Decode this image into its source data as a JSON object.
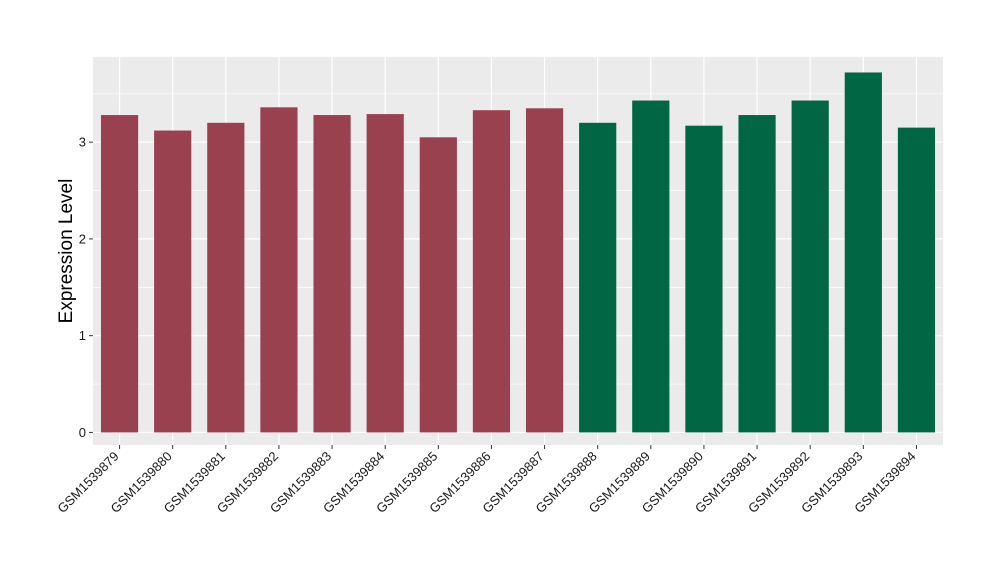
{
  "chart_data": {
    "type": "bar",
    "title": "",
    "xlabel": "",
    "ylabel": "Expression Level",
    "ylim": [
      -0.13,
      3.88
    ],
    "yticks": [
      0,
      1,
      2,
      3
    ],
    "grid": true,
    "legend": "none",
    "categories": [
      "GSM1539879",
      "GSM1539880",
      "GSM1539881",
      "GSM1539882",
      "GSM1539883",
      "GSM1539884",
      "GSM1539885",
      "GSM1539886",
      "GSM1539887",
      "GSM1539888",
      "GSM1539889",
      "GSM1539890",
      "GSM1539891",
      "GSM1539892",
      "GSM1539893",
      "GSM1539894"
    ],
    "values": [
      3.28,
      3.12,
      3.2,
      3.36,
      3.28,
      3.29,
      3.05,
      3.33,
      3.35,
      3.2,
      3.43,
      3.17,
      3.28,
      3.43,
      3.72,
      3.15
    ],
    "group_index": [
      0,
      0,
      0,
      0,
      0,
      0,
      0,
      0,
      0,
      1,
      1,
      1,
      1,
      1,
      1,
      1
    ],
    "group_colors": [
      "#9a4150",
      "#006644"
    ],
    "panel_background": "#ebebeb",
    "grid_color": "#ffffff"
  }
}
